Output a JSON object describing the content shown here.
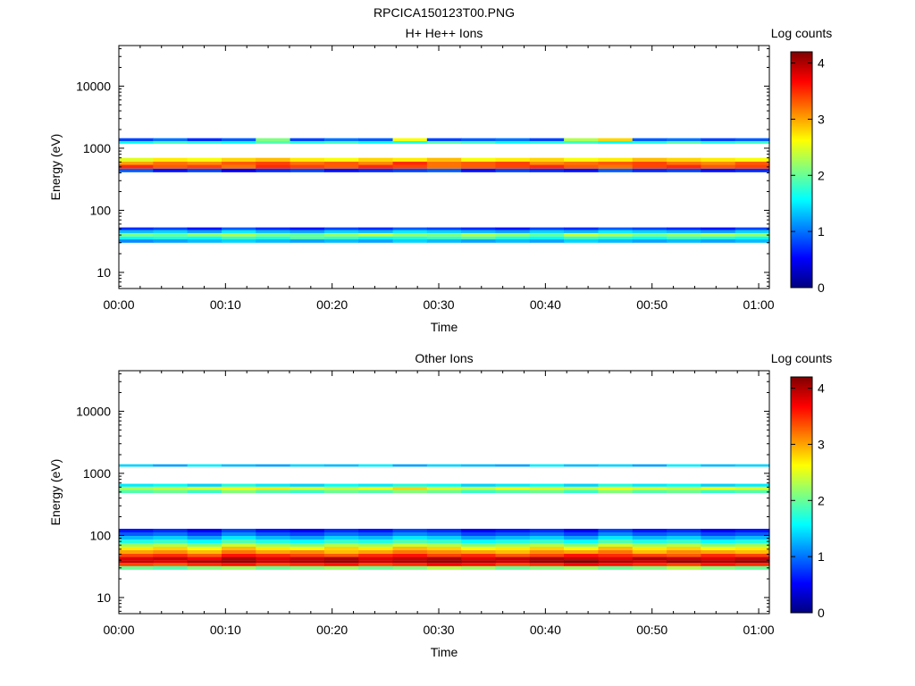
{
  "figure": {
    "title": "RPCICA150123T00.PNG"
  },
  "chart_data": [
    {
      "type": "heatmap",
      "title": "H+ He++ Ions",
      "xlabel": "Time",
      "ylabel": "Energy (eV)",
      "x_ticks": [
        "00:00",
        "00:10",
        "00:20",
        "00:30",
        "00:40",
        "00:50",
        "01:00"
      ],
      "y_ticks": [
        10,
        100,
        1000,
        10000
      ],
      "xlim_minutes": [
        0,
        61
      ],
      "ylim": [
        5.5,
        45000
      ],
      "y_scale": "log",
      "colorbar": {
        "label": "Log counts",
        "range": [
          0,
          4.2
        ],
        "ticks": [
          0,
          1,
          2,
          3,
          4
        ]
      },
      "time_bins": 19,
      "bands": [
        {
          "e_min": 30,
          "e_max": 34,
          "values": [
            1.1,
            1.2,
            1.3,
            1.4,
            1.3,
            1.2,
            1.3,
            1.2,
            1.4,
            1.3,
            1.2,
            1.3,
            1.2,
            1.4,
            1.3,
            1.2,
            1.3,
            1.2,
            1.3
          ]
        },
        {
          "e_min": 34,
          "e_max": 38,
          "values": [
            1.6,
            1.7,
            1.6,
            1.8,
            1.7,
            1.9,
            1.8,
            1.6,
            1.7,
            1.8,
            1.9,
            1.7,
            1.6,
            1.8,
            1.7,
            1.6,
            1.8,
            1.7,
            1.6
          ]
        },
        {
          "e_min": 38,
          "e_max": 43,
          "values": [
            2.1,
            2.0,
            2.2,
            2.3,
            2.1,
            2.0,
            2.2,
            2.4,
            2.2,
            2.1,
            2.3,
            2.2,
            2.0,
            2.4,
            2.3,
            2.1,
            2.2,
            2.3,
            2.2
          ]
        },
        {
          "e_min": 43,
          "e_max": 48,
          "values": [
            1.3,
            1.4,
            1.2,
            1.5,
            1.3,
            1.2,
            1.4,
            1.3,
            1.5,
            1.4,
            1.3,
            1.2,
            1.4,
            1.3,
            1.5,
            1.4,
            1.3,
            1.2,
            1.4
          ]
        },
        {
          "e_min": 48,
          "e_max": 53,
          "values": [
            0.7,
            0.8,
            0.6,
            0.9,
            0.7,
            0.6,
            0.8,
            0.7,
            0.9,
            0.8,
            0.7,
            0.6,
            0.8,
            0.7,
            0.9,
            0.8,
            0.7,
            0.6,
            0.8
          ]
        },
        {
          "e_min": 410,
          "e_max": 470,
          "values": [
            0.9,
            0.6,
            0.8,
            0.5,
            0.7,
            0.8,
            0.6,
            0.7,
            0.8,
            0.9,
            0.6,
            0.8,
            0.7,
            0.6,
            0.9,
            0.7,
            0.8,
            0.6,
            0.7
          ]
        },
        {
          "e_min": 470,
          "e_max": 540,
          "values": [
            3.5,
            3.3,
            3.4,
            3.2,
            3.5,
            3.4,
            3.3,
            3.5,
            3.4,
            3.2,
            3.3,
            3.4,
            3.5,
            3.3,
            3.2,
            3.4,
            3.5,
            3.3,
            3.4
          ]
        },
        {
          "e_min": 540,
          "e_max": 610,
          "values": [
            3.0,
            3.2,
            3.1,
            3.3,
            3.4,
            3.2,
            3.3,
            3.1,
            3.5,
            3.2,
            3.3,
            3.4,
            3.1,
            3.2,
            3.3,
            3.4,
            3.2,
            3.1,
            3.3
          ]
        },
        {
          "e_min": 610,
          "e_max": 700,
          "values": [
            2.5,
            2.7,
            2.6,
            2.8,
            2.9,
            2.7,
            2.6,
            2.8,
            2.7,
            2.9,
            2.6,
            2.7,
            2.8,
            2.6,
            2.7,
            2.9,
            2.8,
            2.7,
            2.6
          ]
        },
        {
          "e_min": 1180,
          "e_max": 1300,
          "values": [
            1.6,
            1.8,
            1.7,
            1.6,
            1.9,
            1.7,
            1.8,
            1.6,
            1.7,
            1.9,
            1.8,
            1.6,
            1.7,
            1.8,
            1.6,
            1.7,
            1.9,
            1.7,
            1.8
          ]
        },
        {
          "e_min": 1300,
          "e_max": 1450,
          "values": [
            0.8,
            1.0,
            0.7,
            0.9,
            2.1,
            0.8,
            1.0,
            0.9,
            2.6,
            0.8,
            0.9,
            1.0,
            0.8,
            2.3,
            2.8,
            0.9,
            1.0,
            0.8,
            0.9
          ]
        }
      ]
    },
    {
      "type": "heatmap",
      "title": "Other Ions",
      "xlabel": "Time",
      "ylabel": "Energy (eV)",
      "x_ticks": [
        "00:00",
        "00:10",
        "00:20",
        "00:30",
        "00:40",
        "00:50",
        "01:00"
      ],
      "y_ticks": [
        10,
        100,
        1000,
        10000
      ],
      "xlim_minutes": [
        0,
        61
      ],
      "ylim": [
        5.5,
        45000
      ],
      "y_scale": "log",
      "colorbar": {
        "label": "Log counts",
        "range": [
          0,
          4.2
        ],
        "ticks": [
          0,
          1,
          2,
          3,
          4
        ]
      },
      "time_bins": 19,
      "bands": [
        {
          "e_min": 28,
          "e_max": 32,
          "values": [
            2.0,
            1.9,
            2.1,
            2.2,
            2.0,
            2.1,
            2.2,
            2.0,
            2.1,
            2.3,
            2.2,
            2.0,
            2.1,
            2.2,
            2.0,
            2.1,
            2.3,
            2.1,
            2.0
          ]
        },
        {
          "e_min": 32,
          "e_max": 36,
          "values": [
            3.4,
            3.3,
            3.5,
            3.6,
            3.4,
            3.5,
            3.6,
            3.4,
            3.5,
            3.7,
            3.6,
            3.4,
            3.5,
            3.7,
            3.6,
            3.5,
            3.4,
            3.6,
            3.5
          ]
        },
        {
          "e_min": 36,
          "e_max": 40,
          "values": [
            3.9,
            3.8,
            4.0,
            4.1,
            3.9,
            4.0,
            4.1,
            3.9,
            4.0,
            4.1,
            4.0,
            3.9,
            4.1,
            4.2,
            4.0,
            3.9,
            4.1,
            4.0,
            4.1
          ]
        },
        {
          "e_min": 40,
          "e_max": 45,
          "values": [
            3.8,
            3.9,
            3.7,
            4.0,
            3.8,
            3.9,
            4.0,
            3.8,
            3.9,
            4.0,
            3.8,
            3.9,
            4.0,
            3.9,
            3.8,
            4.0,
            3.9,
            3.8,
            3.9
          ]
        },
        {
          "e_min": 45,
          "e_max": 51,
          "values": [
            3.4,
            3.5,
            3.3,
            3.6,
            3.5,
            3.4,
            3.3,
            3.5,
            3.6,
            3.4,
            3.5,
            3.3,
            3.4,
            3.6,
            3.5,
            3.4,
            3.3,
            3.5,
            3.4
          ]
        },
        {
          "e_min": 51,
          "e_max": 58,
          "values": [
            3.0,
            3.1,
            2.9,
            3.2,
            3.0,
            3.1,
            2.9,
            3.0,
            3.2,
            3.1,
            3.0,
            2.9,
            3.1,
            3.0,
            3.2,
            2.9,
            3.1,
            3.0,
            2.9
          ]
        },
        {
          "e_min": 58,
          "e_max": 66,
          "values": [
            2.7,
            2.8,
            2.6,
            2.9,
            2.7,
            2.6,
            2.8,
            2.7,
            2.9,
            2.8,
            2.6,
            2.7,
            2.8,
            2.6,
            2.9,
            2.7,
            2.8,
            2.6,
            2.7
          ]
        },
        {
          "e_min": 66,
          "e_max": 75,
          "values": [
            2.2,
            2.3,
            2.1,
            2.4,
            2.2,
            2.1,
            2.3,
            2.2,
            2.4,
            2.3,
            2.1,
            2.2,
            2.3,
            2.1,
            2.4,
            2.2,
            2.3,
            2.1,
            2.2
          ]
        },
        {
          "e_min": 75,
          "e_max": 86,
          "values": [
            1.7,
            1.8,
            1.6,
            1.9,
            1.7,
            1.6,
            1.8,
            1.7,
            1.9,
            1.8,
            1.6,
            1.7,
            1.8,
            1.6,
            1.9,
            1.7,
            1.8,
            1.6,
            1.7
          ]
        },
        {
          "e_min": 86,
          "e_max": 98,
          "values": [
            1.3,
            1.4,
            1.2,
            1.5,
            1.3,
            1.2,
            1.4,
            1.3,
            1.5,
            1.4,
            1.2,
            1.3,
            1.4,
            1.2,
            1.5,
            1.3,
            1.4,
            1.2,
            1.3
          ]
        },
        {
          "e_min": 98,
          "e_max": 112,
          "values": [
            0.9,
            1.0,
            0.8,
            1.1,
            0.9,
            0.8,
            1.0,
            0.9,
            1.1,
            1.0,
            0.8,
            0.9,
            1.0,
            0.8,
            1.1,
            0.9,
            1.0,
            0.8,
            0.9
          ]
        },
        {
          "e_min": 112,
          "e_max": 128,
          "values": [
            0.6,
            0.7,
            0.5,
            0.8,
            0.6,
            0.5,
            0.7,
            0.6,
            0.8,
            0.7,
            0.5,
            0.6,
            0.7,
            0.5,
            0.8,
            0.6,
            0.7,
            0.5,
            0.6
          ]
        },
        {
          "e_min": 480,
          "e_max": 540,
          "values": [
            1.9,
            2.0,
            1.8,
            2.1,
            1.9,
            1.8,
            2.0,
            1.9,
            2.1,
            2.0,
            1.8,
            1.9,
            2.0,
            1.8,
            2.1,
            1.9,
            2.0,
            1.8,
            1.9
          ]
        },
        {
          "e_min": 540,
          "e_max": 610,
          "values": [
            2.3,
            2.4,
            2.5,
            2.6,
            2.7,
            2.5,
            2.4,
            2.6,
            2.8,
            2.5,
            2.4,
            2.6,
            2.5,
            2.4,
            2.6,
            2.5,
            2.4,
            2.6,
            2.5
          ]
        },
        {
          "e_min": 610,
          "e_max": 680,
          "values": [
            1.5,
            1.6,
            1.4,
            1.7,
            1.5,
            1.4,
            1.6,
            1.5,
            1.7,
            1.6,
            1.4,
            1.5,
            1.6,
            1.4,
            1.7,
            1.5,
            1.6,
            1.4,
            1.5
          ]
        },
        {
          "e_min": 1280,
          "e_max": 1400,
          "values": [
            1.4,
            1.2,
            1.5,
            1.3,
            1.2,
            1.4,
            1.3,
            1.5,
            1.2,
            1.4,
            1.3,
            1.2,
            1.5,
            1.3,
            1.4,
            1.2,
            1.5,
            1.3,
            1.4
          ]
        }
      ]
    }
  ]
}
